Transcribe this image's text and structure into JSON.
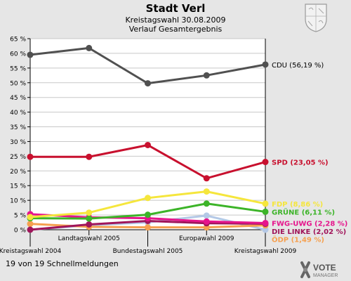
{
  "header": {
    "title": "Stadt Verl",
    "subtitle": "Kreistagswahl 30.08.2009",
    "subtitle2": "Verlauf Gesamtergebnis"
  },
  "footer": {
    "status": "19 von 19 Schnellmeldungen",
    "logo_line1": "VOTE",
    "logo_line2": "MANAGER"
  },
  "colors": {
    "background": "#e6e6e6",
    "plot_background": "#ffffff",
    "grid": "#c8c8c8"
  },
  "chart_data": {
    "type": "line",
    "categories": [
      "Kreistagswahl 2004",
      "Landtagswahl 2005",
      "Bundestagswahl 2005",
      "Europawahl 2009",
      "Kreistagswahl 2009"
    ],
    "ylim": [
      0,
      65
    ],
    "yticks": [
      0,
      5,
      10,
      15,
      20,
      25,
      30,
      35,
      40,
      45,
      50,
      55,
      60,
      65
    ],
    "ytick_labels": [
      "0 %",
      "5 %",
      "10 %",
      "15 %",
      "20 %",
      "25 %",
      "30 %",
      "35 %",
      "40 %",
      "45 %",
      "50 %",
      "55 %",
      "60 %",
      "65 %"
    ],
    "grid": true,
    "series": [
      {
        "name": "CDU",
        "label": "CDU (56,19 %)",
        "color": "#505050",
        "values": [
          59.5,
          61.8,
          49.8,
          52.5,
          56.19
        ]
      },
      {
        "name": "SPD",
        "label": "SPD (23,05 %)",
        "color": "#c8102e",
        "values": [
          24.8,
          24.8,
          28.8,
          17.5,
          23.05
        ]
      },
      {
        "name": "FDP",
        "label": "FDP (8,86 %)",
        "color": "#f5e63c",
        "values": [
          4.3,
          5.8,
          10.8,
          13.0,
          8.86
        ]
      },
      {
        "name": "GRÜNE",
        "label": "GRÜNE (6,11 %)",
        "color": "#3cb428",
        "values": [
          3.9,
          3.8,
          5.1,
          8.9,
          6.11
        ]
      },
      {
        "name": "FWG-UWG",
        "label": "FWG-UWG (2,28 %)",
        "color": "#e6148c",
        "values": [
          5.3,
          4.2,
          3.9,
          2.8,
          2.28
        ]
      },
      {
        "name": "DIE LINKE",
        "label": "DIE LINKE (2,02 %)",
        "color": "#a0155a",
        "values": [
          0,
          1.8,
          3.0,
          2.2,
          2.02
        ]
      },
      {
        "name": "ÖDP",
        "label": "ÖDP (1,49 %)",
        "color": "#f5a050",
        "values": [
          2.0,
          1.0,
          0.8,
          0.8,
          1.49
        ]
      },
      {
        "name": "",
        "label": "",
        "color": "#b4c8e6",
        "values": [
          0,
          1.5,
          2.5,
          4.8,
          0
        ]
      }
    ]
  }
}
